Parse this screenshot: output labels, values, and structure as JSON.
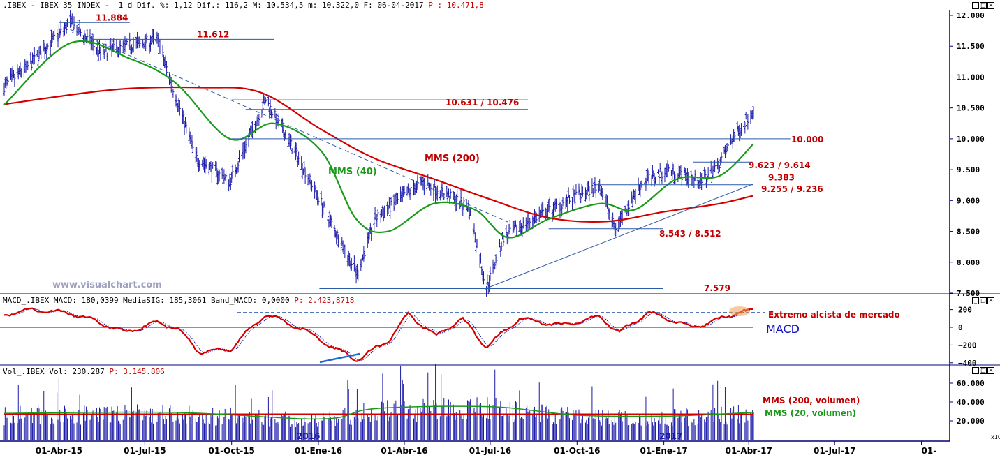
{
  "colors": {
    "bars": "#1a1aa8",
    "mms200": "#d40000",
    "mms40": "#1a9a1a",
    "levels": "#2a5aa8",
    "annot_red": "#c00000",
    "watermark": "#a0a0c0",
    "axis": "#00007a"
  },
  "panels": {
    "price": {
      "header_text": ".IBEX - IBEX 35 INDEX -  1 d Dif. %: 1,12 Dif.: 116,2 M: 10.534,5 m: 10.322,0 F: 06-04-2017",
      "header_highlight": "P : 10.471,8",
      "watermark": "www.visualchart.com",
      "y_ticks": [
        "12.000",
        "11.500",
        "11.000",
        "10.500",
        "10.000",
        "9.500",
        "9.000",
        "8.500",
        "8.000",
        "7.500"
      ]
    },
    "macd": {
      "header_text": "MACD_.IBEX MACD: 180,0399 MediaSIG: 185,3061 Band_MACD: 0,0000",
      "header_highlight": "P: 2.423,8718",
      "y_ticks": [
        "200",
        "0",
        "−200",
        "−400"
      ],
      "annotation": "Extremo alcista de mercado",
      "label": "MACD"
    },
    "volume": {
      "header_text": "Vol_.IBEX Vol: 230.287",
      "header_highlight": "P: 3.145.806",
      "y_ticks": [
        "60.000",
        "40.000",
        "20.000"
      ],
      "scale_note": "x10",
      "year_marks": [
        "2016",
        "2017"
      ],
      "legend_200": "MMS (200, volumen)",
      "legend_20": "MMS (20, volumen)"
    }
  },
  "x_axis_labels": [
    "01-Abr-15",
    "01-Jul-15",
    "01-Oct-15",
    "01-Ene-16",
    "01-Abr-16",
    "01-Jul-16",
    "01-Oct-16",
    "01-Ene-17",
    "01-Abr-17",
    "01-Jul-17",
    "01-"
  ],
  "chart_data": [
    {
      "type": "bar",
      "subtype": "ohlc",
      "title": ".IBEX - IBEX 35 INDEX",
      "x_range": [
        "2015-02-02",
        "2017-04-06"
      ],
      "ylim": [
        7500,
        12000
      ],
      "key_points": [
        {
          "date": "2015-02-02",
          "close": 10850
        },
        {
          "date": "2015-03-01",
          "close": 11200
        },
        {
          "date": "2015-04-13",
          "close": 11884
        },
        {
          "date": "2015-05-15",
          "close": 11400
        },
        {
          "date": "2015-07-14",
          "close": 11612
        },
        {
          "date": "2015-08-24",
          "close": 9700
        },
        {
          "date": "2015-09-29",
          "close": 9300
        },
        {
          "date": "2015-11-06",
          "close": 10631
        },
        {
          "date": "2015-12-14",
          "close": 9600
        },
        {
          "date": "2016-02-11",
          "close": 7800
        },
        {
          "date": "2016-03-01",
          "close": 8700
        },
        {
          "date": "2016-04-20",
          "close": 9300
        },
        {
          "date": "2016-06-08",
          "close": 8900
        },
        {
          "date": "2016-06-27",
          "close": 7579
        },
        {
          "date": "2016-07-15",
          "close": 8400
        },
        {
          "date": "2016-08-15",
          "close": 8700
        },
        {
          "date": "2016-09-09",
          "close": 8900
        },
        {
          "date": "2016-10-25",
          "close": 9250
        },
        {
          "date": "2016-11-10",
          "close": 8543
        },
        {
          "date": "2016-12-09",
          "close": 9300
        },
        {
          "date": "2017-01-06",
          "close": 9500
        },
        {
          "date": "2017-02-10",
          "close": 9300
        },
        {
          "date": "2017-03-01",
          "close": 9600
        },
        {
          "date": "2017-03-15",
          "close": 10000
        },
        {
          "date": "2017-04-06",
          "close": 10471.8
        }
      ],
      "series": [
        {
          "name": "MMS (200)",
          "values": [
            {
              "date": "2015-02-02",
              "value": 10560
            },
            {
              "date": "2015-06-01",
              "value": 10800
            },
            {
              "date": "2015-09-01",
              "value": 10830
            },
            {
              "date": "2015-11-01",
              "value": 10750
            },
            {
              "date": "2016-01-04",
              "value": 10150
            },
            {
              "date": "2016-03-01",
              "value": 9680
            },
            {
              "date": "2016-05-02",
              "value": 9350
            },
            {
              "date": "2016-07-01",
              "value": 9020
            },
            {
              "date": "2016-09-01",
              "value": 8720
            },
            {
              "date": "2016-11-01",
              "value": 8660
            },
            {
              "date": "2017-01-02",
              "value": 8820
            },
            {
              "date": "2017-03-01",
              "value": 8950
            },
            {
              "date": "2017-04-06",
              "value": 9080
            }
          ]
        },
        {
          "name": "MMS (40)",
          "values": [
            {
              "date": "2015-02-02",
              "value": 10550
            },
            {
              "date": "2015-04-13",
              "value": 11550
            },
            {
              "date": "2015-06-15",
              "value": 11300
            },
            {
              "date": "2015-08-03",
              "value": 10900
            },
            {
              "date": "2015-09-29",
              "value": 10000
            },
            {
              "date": "2015-11-15",
              "value": 10250
            },
            {
              "date": "2016-01-04",
              "value": 9800
            },
            {
              "date": "2016-02-10",
              "value": 8700
            },
            {
              "date": "2016-03-15",
              "value": 8500
            },
            {
              "date": "2016-05-02",
              "value": 8950
            },
            {
              "date": "2016-06-15",
              "value": 8850
            },
            {
              "date": "2016-07-20",
              "value": 8400
            },
            {
              "date": "2016-09-01",
              "value": 8700
            },
            {
              "date": "2016-10-25",
              "value": 8950
            },
            {
              "date": "2016-12-01",
              "value": 8850
            },
            {
              "date": "2017-01-15",
              "value": 9350
            },
            {
              "date": "2017-03-01",
              "value": 9400
            },
            {
              "date": "2017-04-06",
              "value": 9920
            }
          ]
        }
      ],
      "levels": [
        {
          "label": "11.884",
          "value": 11884
        },
        {
          "label": "11.612",
          "value": 11612
        },
        {
          "label": "10.631 / 10.476",
          "value": 10631,
          "value2": 10476
        },
        {
          "label": "10.000",
          "value": 10000
        },
        {
          "label": "9.623 / 9.614",
          "value": 9623
        },
        {
          "label": "9.383",
          "value": 9383
        },
        {
          "label": "9.255 / 9.236",
          "value": 9255,
          "value2": 9236
        },
        {
          "label": "8.543 / 8.512",
          "value": 8543
        },
        {
          "label": "7.579",
          "value": 7579
        }
      ],
      "labels": [
        "MMS (40)",
        "MMS (200)"
      ]
    },
    {
      "type": "line",
      "title": "MACD_.IBEX",
      "ylim": [
        -400,
        200
      ],
      "series": [
        {
          "name": "MACD",
          "values": [
            {
              "date": "2015-02-02",
              "value": 150
            },
            {
              "date": "2015-03-05",
              "value": 200
            },
            {
              "date": "2015-04-13",
              "value": 160
            },
            {
              "date": "2015-05-15",
              "value": 50
            },
            {
              "date": "2015-06-10",
              "value": -60
            },
            {
              "date": "2015-07-14",
              "value": 60
            },
            {
              "date": "2015-08-05",
              "value": -20
            },
            {
              "date": "2015-08-28",
              "value": -280
            },
            {
              "date": "2015-09-29",
              "value": -250
            },
            {
              "date": "2015-11-06",
              "value": 150
            },
            {
              "date": "2015-12-15",
              "value": -20
            },
            {
              "date": "2016-01-20",
              "value": -250
            },
            {
              "date": "2016-02-11",
              "value": -370
            },
            {
              "date": "2016-03-15",
              "value": -150
            },
            {
              "date": "2016-04-05",
              "value": 150
            },
            {
              "date": "2016-05-05",
              "value": -100
            },
            {
              "date": "2016-06-01",
              "value": 100
            },
            {
              "date": "2016-06-27",
              "value": -220
            },
            {
              "date": "2016-08-01",
              "value": 100
            },
            {
              "date": "2016-09-15",
              "value": 20
            },
            {
              "date": "2016-10-25",
              "value": 120
            },
            {
              "date": "2016-11-15",
              "value": -60
            },
            {
              "date": "2016-12-15",
              "value": 170
            },
            {
              "date": "2017-02-01",
              "value": 0
            },
            {
              "date": "2017-03-01",
              "value": 90
            },
            {
              "date": "2017-03-25",
              "value": 185
            },
            {
              "date": "2017-04-06",
              "value": 180
            }
          ]
        }
      ],
      "annotations": [
        "Extremo alcista de mercado"
      ]
    },
    {
      "type": "bar",
      "title": "Vol_.IBEX",
      "ylim": [
        0,
        60000
      ],
      "scale": "x10",
      "series": [
        {
          "name": "MMS (200, volumen)",
          "values": [
            {
              "date": "2015-02-02",
              "value": 27000
            },
            {
              "date": "2017-04-06",
              "value": 27000
            }
          ]
        },
        {
          "name": "MMS (20, volumen)",
          "values": [
            {
              "date": "2015-02-02",
              "value": 28000
            },
            {
              "date": "2015-08-01",
              "value": 29000
            },
            {
              "date": "2016-01-04",
              "value": 22000
            },
            {
              "date": "2016-03-01",
              "value": 33000
            },
            {
              "date": "2016-07-01",
              "value": 35000
            },
            {
              "date": "2016-10-01",
              "value": 26000
            },
            {
              "date": "2017-01-02",
              "value": 25000
            },
            {
              "date": "2017-04-06",
              "value": 29000
            }
          ]
        }
      ]
    }
  ]
}
